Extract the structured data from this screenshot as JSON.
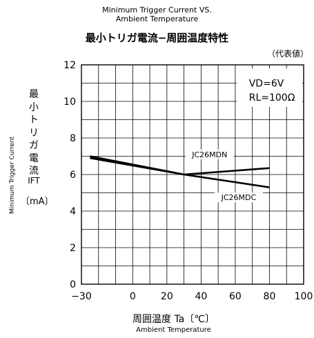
{
  "chart_data": {
    "type": "line",
    "title_en_line1": "Minimum Trigger Current VS.",
    "title_en_line2": "Ambient Temperature",
    "title_jp": "最小トリガ電流−周囲温度特性",
    "note": "（代表値）",
    "conditions": [
      "VD=6V",
      "RL=100Ω"
    ],
    "ylabel_en": "Minimum Trigger Current",
    "ylabel_jp": [
      "最",
      "小",
      "ト",
      "リ",
      "ガ",
      "電",
      "流"
    ],
    "ylabel_symbol": "IFT",
    "ylabel_unit": "〔mA〕",
    "xlabel_jp": "周囲温度 Ta〔℃〕",
    "xlabel_en": "Ambient Temperature",
    "xlim": [
      -30,
      100
    ],
    "ylim": [
      0,
      12
    ],
    "x_ticks": [
      -30,
      0,
      20,
      40,
      60,
      80,
      100
    ],
    "y_ticks": [
      0,
      2,
      4,
      6,
      8,
      10,
      12
    ],
    "grid": true,
    "series": [
      {
        "name": "JC26MDN",
        "color": "#000000",
        "x": [
          -25,
          30,
          80
        ],
        "y": [
          6.9,
          6.0,
          6.35
        ]
      },
      {
        "name": "JC26MDC",
        "color": "#000000",
        "x": [
          -25,
          30,
          80
        ],
        "y": [
          7.0,
          6.0,
          5.3
        ]
      }
    ]
  }
}
